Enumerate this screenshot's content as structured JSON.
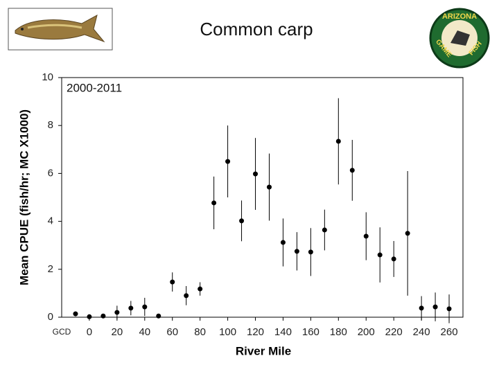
{
  "chart_data": {
    "type": "scatter",
    "title": "Common carp",
    "annotation": "2000-2011",
    "xlabel": "River Mile",
    "ylabel": "Mean CPUE (fish/hr; MC X1000)",
    "logo_text": [
      "ARIZONA",
      "GAME",
      "FISH"
    ],
    "color": "#000000",
    "x": [
      -10,
      0,
      10,
      20,
      30,
      40,
      50,
      60,
      70,
      80,
      90,
      100,
      110,
      120,
      130,
      140,
      150,
      160,
      170,
      180,
      190,
      200,
      210,
      220,
      230,
      240,
      250,
      260
    ],
    "values": [
      0.14,
      0.02,
      0.05,
      0.2,
      0.38,
      0.43,
      0.05,
      1.47,
      0.9,
      1.18,
      4.77,
      6.5,
      4.02,
      5.98,
      5.43,
      3.12,
      2.75,
      2.72,
      3.64,
      7.34,
      6.13,
      3.38,
      2.6,
      2.43,
      3.5,
      0.38,
      0.43,
      0.35
    ],
    "errors": [
      0.1,
      0.02,
      0.05,
      0.28,
      0.3,
      0.38,
      0.05,
      0.4,
      0.4,
      0.28,
      1.1,
      1.5,
      0.85,
      1.5,
      1.4,
      1.0,
      0.8,
      1.0,
      0.85,
      1.8,
      1.27,
      1.0,
      1.15,
      0.75,
      2.6,
      0.5,
      0.6,
      0.6
    ],
    "xlim": [
      -20,
      270
    ],
    "ylim": [
      0,
      10
    ],
    "xticks": [
      {
        "value": -20,
        "label": "GCD"
      },
      0,
      20,
      40,
      60,
      80,
      100,
      120,
      140,
      160,
      180,
      200,
      220,
      240,
      260
    ],
    "yticks": [
      0,
      2,
      4,
      6,
      8,
      10
    ]
  }
}
